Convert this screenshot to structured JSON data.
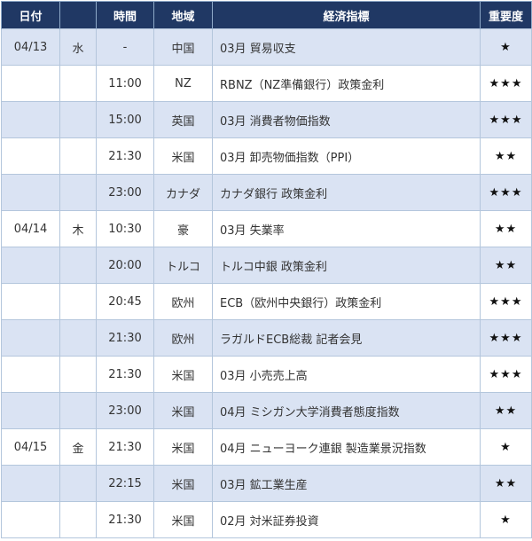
{
  "header": {
    "date": "日付",
    "day": "",
    "time": "時間",
    "region": "地域",
    "indicator": "経済指標",
    "importance": "重要度"
  },
  "rows": [
    {
      "date": "04/13",
      "day": "水",
      "time": "-",
      "region": "中国",
      "indicator": "03月 貿易収支",
      "importance": "★"
    },
    {
      "date": "",
      "day": "",
      "time": "11:00",
      "region": "NZ",
      "indicator": "RBNZ（NZ準備銀行）政策金利",
      "importance": "★★★"
    },
    {
      "date": "",
      "day": "",
      "time": "15:00",
      "region": "英国",
      "indicator": "03月 消費者物価指数",
      "importance": "★★★"
    },
    {
      "date": "",
      "day": "",
      "time": "21:30",
      "region": "米国",
      "indicator": "03月 卸売物価指数（PPI）",
      "importance": "★★"
    },
    {
      "date": "",
      "day": "",
      "time": "23:00",
      "region": "カナダ",
      "indicator": "カナダ銀行 政策金利",
      "importance": "★★★"
    },
    {
      "date": "04/14",
      "day": "木",
      "time": "10:30",
      "region": "豪",
      "indicator": "03月 失業率",
      "importance": "★★"
    },
    {
      "date": "",
      "day": "",
      "time": "20:00",
      "region": "トルコ",
      "indicator": "トルコ中銀 政策金利",
      "importance": "★★"
    },
    {
      "date": "",
      "day": "",
      "time": "20:45",
      "region": "欧州",
      "indicator": "ECB（欧州中央銀行）政策金利",
      "importance": "★★★"
    },
    {
      "date": "",
      "day": "",
      "time": "21:30",
      "region": "欧州",
      "indicator": "ラガルドECB総裁 記者会見",
      "importance": "★★★"
    },
    {
      "date": "",
      "day": "",
      "time": "21:30",
      "region": "米国",
      "indicator": "03月 小売売上高",
      "importance": "★★★"
    },
    {
      "date": "",
      "day": "",
      "time": "23:00",
      "region": "米国",
      "indicator": "04月 ミシガン大学消費者態度指数",
      "importance": "★★"
    },
    {
      "date": "04/15",
      "day": "金",
      "time": "21:30",
      "region": "米国",
      "indicator": "04月 ニューヨーク連銀 製造業景況指数",
      "importance": "★"
    },
    {
      "date": "",
      "day": "",
      "time": "22:15",
      "region": "米国",
      "indicator": "03月 鉱工業生産",
      "importance": "★★"
    },
    {
      "date": "",
      "day": "",
      "time": "21:30",
      "region": "米国",
      "indicator": "02月 対米証券投資",
      "importance": "★"
    }
  ],
  "colors": {
    "header_bg": "#203864",
    "alt_row": "#dae3f3"
  }
}
